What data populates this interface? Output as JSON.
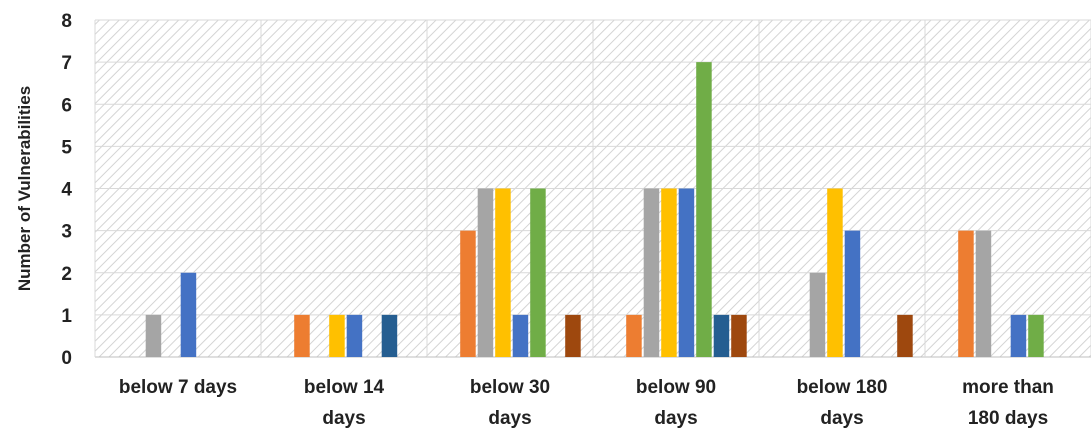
{
  "chart_data": {
    "type": "bar",
    "ylabel": "Number of Vulnerabilities",
    "ylim": [
      0,
      8
    ],
    "yticks": [
      "0",
      "1",
      "2",
      "3",
      "4",
      "5",
      "6",
      "7",
      "8"
    ],
    "categories": [
      [
        "below 7 days"
      ],
      [
        "below 14",
        "days"
      ],
      [
        "below 30",
        "days"
      ],
      [
        "below 90",
        "days"
      ],
      [
        "below 180",
        "days"
      ],
      [
        "more than",
        "180 days"
      ]
    ],
    "series": [
      {
        "color": "#ED7D31",
        "values": [
          0,
          1,
          3,
          1,
          0,
          3
        ]
      },
      {
        "color": "#A5A5A5",
        "values": [
          1,
          0,
          4,
          4,
          2,
          3
        ]
      },
      {
        "color": "#FFC000",
        "values": [
          0,
          1,
          4,
          4,
          4,
          0
        ]
      },
      {
        "color": "#4472C4",
        "values": [
          2,
          1,
          1,
          4,
          3,
          1
        ]
      },
      {
        "color": "#70AD47",
        "values": [
          0,
          0,
          4,
          7,
          0,
          1
        ]
      },
      {
        "color": "#255E91",
        "values": [
          0,
          1,
          0,
          1,
          0,
          0
        ]
      },
      {
        "color": "#9E480E",
        "values": [
          0,
          0,
          1,
          1,
          1,
          0
        ]
      }
    ],
    "grid": true,
    "legend": "none"
  }
}
